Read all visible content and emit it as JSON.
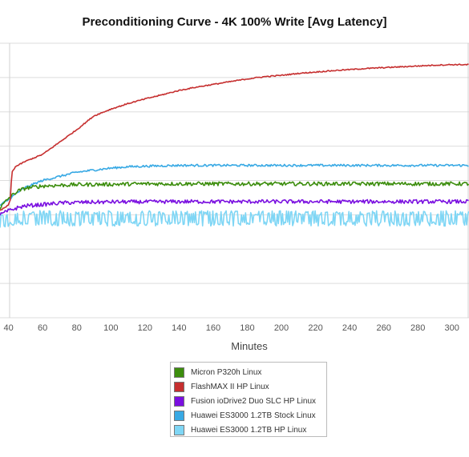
{
  "chart_data": {
    "type": "line",
    "title": "Preconditioning Curve - 4K 100% Write [Avg Latency]",
    "xlabel": "Minutes",
    "ylabel": "",
    "xlim": [
      35,
      310
    ],
    "ylim": [
      0,
      10
    ],
    "x_ticks": [
      40,
      60,
      80,
      100,
      120,
      140,
      160,
      180,
      200,
      220,
      240,
      260,
      280,
      300
    ],
    "grid": true,
    "legend_position": "bottom",
    "series": [
      {
        "name": "Micron P320h Linux",
        "color": "#3c8d0d",
        "x": [
          35,
          40,
          45,
          50,
          60,
          80,
          100,
          120,
          140,
          160,
          180,
          200,
          220,
          240,
          260,
          280,
          300,
          310
        ],
        "values": [
          4.0,
          4.35,
          4.6,
          4.72,
          4.8,
          4.85,
          4.86,
          4.88,
          4.88,
          4.88,
          4.88,
          4.88,
          4.88,
          4.88,
          4.88,
          4.88,
          4.88,
          4.88
        ],
        "noise": 0.07
      },
      {
        "name": "FlashMAX II HP Linux",
        "color": "#c62f2f",
        "x": [
          35,
          40,
          41,
          42,
          44,
          50,
          60,
          70,
          80,
          90,
          100,
          110,
          120,
          130,
          140,
          150,
          160,
          170,
          180,
          190,
          200,
          210,
          220,
          230,
          240,
          250,
          260,
          270,
          280,
          290,
          300,
          310
        ],
        "values": [
          3.9,
          4.1,
          4.3,
          5.3,
          5.5,
          5.7,
          5.95,
          6.4,
          6.85,
          7.35,
          7.6,
          7.8,
          7.97,
          8.12,
          8.28,
          8.4,
          8.5,
          8.6,
          8.7,
          8.78,
          8.83,
          8.9,
          8.95,
          9.0,
          9.04,
          9.08,
          9.11,
          9.14,
          9.17,
          9.2,
          9.22,
          9.22
        ],
        "noise": 0.02
      },
      {
        "name": "Fusion ioDrive2 Duo SLC HP Linux",
        "color": "#7a0fe0",
        "x": [
          35,
          40,
          45,
          50,
          60,
          70,
          80,
          100,
          120,
          140,
          160,
          180,
          200,
          220,
          240,
          260,
          280,
          300,
          310
        ],
        "values": [
          3.75,
          3.9,
          4.0,
          4.08,
          4.12,
          4.18,
          4.2,
          4.22,
          4.22,
          4.23,
          4.23,
          4.23,
          4.23,
          4.23,
          4.23,
          4.23,
          4.23,
          4.23,
          4.23
        ],
        "noise": 0.07
      },
      {
        "name": "Huawei ES3000 1.2TB Stock Linux",
        "color": "#38a9e4",
        "x": [
          35,
          40,
          45,
          50,
          60,
          70,
          80,
          90,
          100,
          110,
          120,
          140,
          160,
          180,
          200,
          220,
          240,
          260,
          280,
          300,
          310
        ],
        "values": [
          4.1,
          4.3,
          4.55,
          4.75,
          5.0,
          5.15,
          5.3,
          5.38,
          5.45,
          5.5,
          5.52,
          5.55,
          5.55,
          5.55,
          5.55,
          5.55,
          5.55,
          5.55,
          5.55,
          5.55,
          5.55
        ],
        "noise": 0.04
      },
      {
        "name": "Huawei ES3000 1.2TB HP Linux",
        "color": "#7fd6f5",
        "x": [
          35,
          40,
          45,
          50,
          60,
          80,
          100,
          120,
          140,
          160,
          180,
          200,
          220,
          240,
          260,
          280,
          300,
          310
        ],
        "values": [
          3.5,
          3.6,
          3.65,
          3.62,
          3.62,
          3.62,
          3.62,
          3.62,
          3.62,
          3.62,
          3.62,
          3.62,
          3.62,
          3.62,
          3.62,
          3.62,
          3.62,
          3.62
        ],
        "noise": 0.28
      }
    ]
  }
}
